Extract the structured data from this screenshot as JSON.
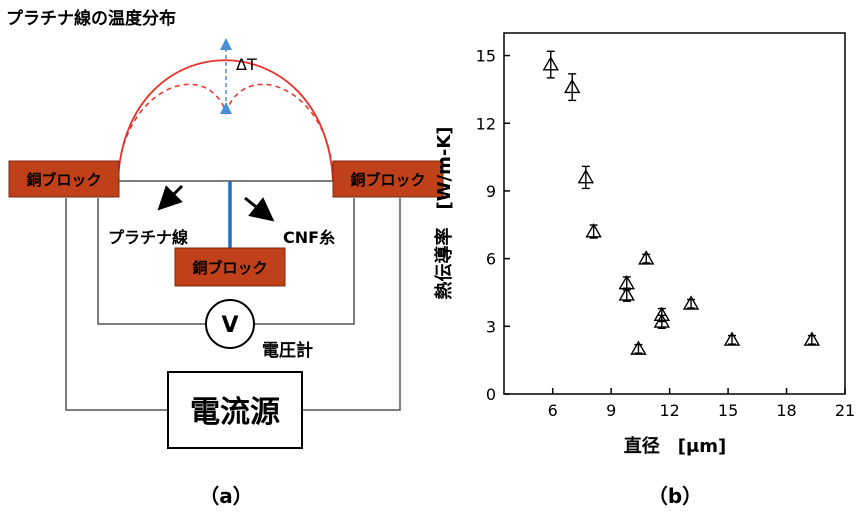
{
  "diagram": {
    "title": "プラチナ線の温度分布",
    "delta_label": "ΔT",
    "block_left": "銅ブロック",
    "block_right": "銅ブロック",
    "block_center": "銅ブロック",
    "platinum_label": "プラチナ線",
    "cnf_label": "CNF糸",
    "voltmeter_symbol": "V",
    "voltmeter_label": "電圧計",
    "source_label": "電流源",
    "caption": "（a）",
    "colors": {
      "block": "#c0401a",
      "curve": "#e8312a",
      "fiber": "#1f6fc4",
      "arrow": "#4a90d9"
    }
  },
  "chart": {
    "caption": "（b）",
    "chart_data": {
      "type": "scatter",
      "xlabel": "直径　[μm]",
      "ylabel": "熱伝導率　[W/m-K]",
      "xlim": [
        3.5,
        21
      ],
      "ylim": [
        0,
        16
      ],
      "x_ticks": [
        "6",
        "9",
        "12",
        "15",
        "18",
        "21"
      ],
      "y_ticks": [
        "0",
        "3",
        "6",
        "9",
        "12",
        "15"
      ],
      "points": [
        {
          "x": 5.9,
          "y": 14.6,
          "err": 0.5
        },
        {
          "x": 7.0,
          "y": 13.6,
          "err": 0.5
        },
        {
          "x": 7.7,
          "y": 9.6,
          "err": 0.4
        },
        {
          "x": 8.1,
          "y": 7.2,
          "err": 0.2
        },
        {
          "x": 9.8,
          "y": 4.9,
          "err": 0.2
        },
        {
          "x": 9.8,
          "y": 4.4,
          "err": 0.2
        },
        {
          "x": 10.8,
          "y": 6.0,
          "err": 0.1
        },
        {
          "x": 10.4,
          "y": 2.0,
          "err": 0.1
        },
        {
          "x": 11.6,
          "y": 3.5,
          "err": 0.2
        },
        {
          "x": 11.6,
          "y": 3.2,
          "err": 0.2
        },
        {
          "x": 13.1,
          "y": 4.0,
          "err": 0.1
        },
        {
          "x": 15.2,
          "y": 2.4,
          "err": 0.1
        },
        {
          "x": 19.3,
          "y": 2.4,
          "err": 0.1
        }
      ],
      "marker": "open-triangle-with-errorbar",
      "grid": false
    }
  }
}
